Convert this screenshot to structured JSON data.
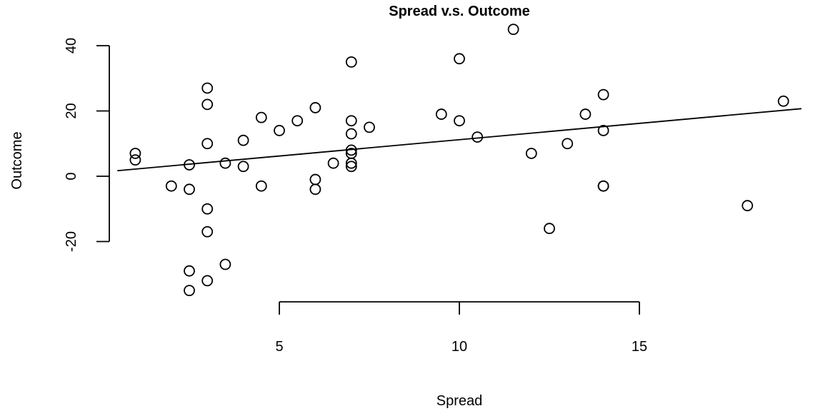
{
  "chart_data": {
    "type": "scatter",
    "title": "Spread v.s. Outcome",
    "xlabel": "Spread",
    "ylabel": "Outcome",
    "xlim": [
      0.5,
      19.5
    ],
    "ylim": [
      -36,
      45
    ],
    "x_ticks": [
      5,
      10,
      15
    ],
    "x_tick_labels": [
      "5",
      "10",
      "15"
    ],
    "y_ticks": [
      -20,
      0,
      20,
      40
    ],
    "y_tick_labels": [
      "-20",
      "0",
      "20",
      "40"
    ],
    "grid": false,
    "legend": "none",
    "marker": "open-circle",
    "fit_line": {
      "intercept": 1.2,
      "slope": 1.0
    },
    "points": [
      {
        "x": 1.0,
        "y": 7
      },
      {
        "x": 1.0,
        "y": 5
      },
      {
        "x": 2.0,
        "y": -3
      },
      {
        "x": 2.5,
        "y": 3.5
      },
      {
        "x": 2.5,
        "y": -4
      },
      {
        "x": 2.5,
        "y": -29
      },
      {
        "x": 2.5,
        "y": -35
      },
      {
        "x": 3.0,
        "y": 27
      },
      {
        "x": 3.0,
        "y": 22
      },
      {
        "x": 3.0,
        "y": 10
      },
      {
        "x": 3.0,
        "y": -10
      },
      {
        "x": 3.0,
        "y": -17
      },
      {
        "x": 3.0,
        "y": -32
      },
      {
        "x": 3.5,
        "y": 4
      },
      {
        "x": 3.5,
        "y": -27
      },
      {
        "x": 4.0,
        "y": 11
      },
      {
        "x": 4.0,
        "y": 3
      },
      {
        "x": 4.5,
        "y": 18
      },
      {
        "x": 4.5,
        "y": -3
      },
      {
        "x": 5.0,
        "y": 14
      },
      {
        "x": 5.5,
        "y": 17
      },
      {
        "x": 6.0,
        "y": 21
      },
      {
        "x": 6.0,
        "y": -1
      },
      {
        "x": 6.0,
        "y": -4
      },
      {
        "x": 6.5,
        "y": 4
      },
      {
        "x": 7.0,
        "y": 35
      },
      {
        "x": 7.0,
        "y": 17
      },
      {
        "x": 7.0,
        "y": 13
      },
      {
        "x": 7.0,
        "y": 8
      },
      {
        "x": 7.0,
        "y": 7
      },
      {
        "x": 7.0,
        "y": 4
      },
      {
        "x": 7.0,
        "y": 3
      },
      {
        "x": 7.5,
        "y": 15
      },
      {
        "x": 9.5,
        "y": 19
      },
      {
        "x": 10.0,
        "y": 36
      },
      {
        "x": 10.0,
        "y": 17
      },
      {
        "x": 10.5,
        "y": 12
      },
      {
        "x": 11.5,
        "y": 45
      },
      {
        "x": 12.0,
        "y": 7
      },
      {
        "x": 12.5,
        "y": -16
      },
      {
        "x": 13.0,
        "y": 10
      },
      {
        "x": 13.5,
        "y": 19
      },
      {
        "x": 14.0,
        "y": 25
      },
      {
        "x": 14.0,
        "y": 14
      },
      {
        "x": 14.0,
        "y": -3
      },
      {
        "x": 14.0,
        "y": -3
      },
      {
        "x": 18.0,
        "y": -9
      },
      {
        "x": 19.0,
        "y": 23
      }
    ]
  }
}
